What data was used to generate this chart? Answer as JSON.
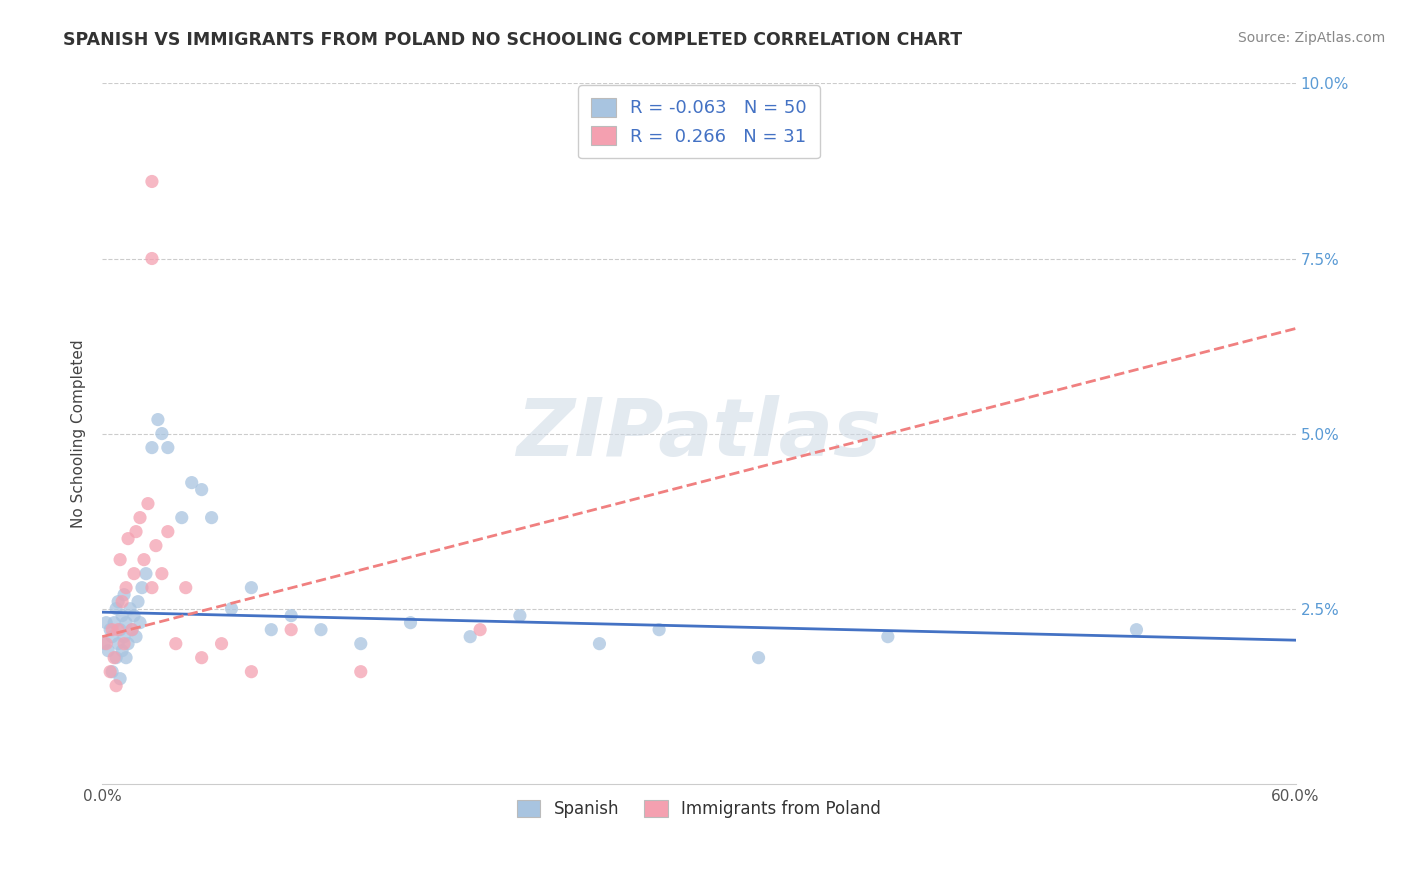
{
  "title": "SPANISH VS IMMIGRANTS FROM POLAND NO SCHOOLING COMPLETED CORRELATION CHART",
  "source": "Source: ZipAtlas.com",
  "ylabel": "No Schooling Completed",
  "xlim": [
    0.0,
    0.6
  ],
  "ylim": [
    0.0,
    0.1
  ],
  "xticks": [
    0.0,
    0.1,
    0.2,
    0.3,
    0.4,
    0.5,
    0.6
  ],
  "yticks": [
    0.0,
    0.025,
    0.05,
    0.075,
    0.1
  ],
  "spanish_R": -0.063,
  "spanish_N": 50,
  "poland_R": 0.266,
  "poland_N": 31,
  "spanish_color": "#a8c4e0",
  "poland_color": "#f4a0b0",
  "trend_color_blue": "#4472c4",
  "trend_color_pink": "#f08080",
  "legend_label_spanish": "Spanish",
  "legend_label_poland": "Immigrants from Poland",
  "spanish_x": [
    0.001,
    0.002,
    0.003,
    0.004,
    0.005,
    0.005,
    0.006,
    0.007,
    0.007,
    0.008,
    0.008,
    0.009,
    0.009,
    0.01,
    0.01,
    0.011,
    0.011,
    0.012,
    0.012,
    0.013,
    0.014,
    0.015,
    0.016,
    0.017,
    0.018,
    0.019,
    0.02,
    0.022,
    0.025,
    0.028,
    0.03,
    0.033,
    0.04,
    0.045,
    0.05,
    0.055,
    0.065,
    0.075,
    0.085,
    0.095,
    0.11,
    0.13,
    0.155,
    0.185,
    0.21,
    0.25,
    0.28,
    0.33,
    0.395,
    0.52
  ],
  "spanish_y": [
    0.02,
    0.023,
    0.019,
    0.022,
    0.016,
    0.021,
    0.023,
    0.018,
    0.025,
    0.02,
    0.026,
    0.015,
    0.022,
    0.019,
    0.024,
    0.021,
    0.027,
    0.018,
    0.023,
    0.02,
    0.025,
    0.022,
    0.024,
    0.021,
    0.026,
    0.023,
    0.028,
    0.03,
    0.048,
    0.052,
    0.05,
    0.048,
    0.038,
    0.043,
    0.042,
    0.038,
    0.025,
    0.028,
    0.022,
    0.024,
    0.022,
    0.02,
    0.023,
    0.021,
    0.024,
    0.02,
    0.022,
    0.018,
    0.021,
    0.022
  ],
  "poland_x": [
    0.002,
    0.004,
    0.005,
    0.006,
    0.007,
    0.008,
    0.009,
    0.01,
    0.011,
    0.012,
    0.013,
    0.015,
    0.016,
    0.017,
    0.019,
    0.021,
    0.023,
    0.025,
    0.027,
    0.03,
    0.033,
    0.037,
    0.042,
    0.05,
    0.06,
    0.075,
    0.095,
    0.13,
    0.19,
    0.025,
    0.025
  ],
  "poland_y": [
    0.02,
    0.016,
    0.022,
    0.018,
    0.014,
    0.022,
    0.032,
    0.026,
    0.02,
    0.028,
    0.035,
    0.022,
    0.03,
    0.036,
    0.038,
    0.032,
    0.04,
    0.028,
    0.034,
    0.03,
    0.036,
    0.02,
    0.028,
    0.018,
    0.02,
    0.016,
    0.022,
    0.016,
    0.022,
    0.086,
    0.075
  ],
  "spain_trend_x0": 0.0,
  "spain_trend_x1": 0.6,
  "spain_trend_y0": 0.0245,
  "spain_trend_y1": 0.0205,
  "poland_trend_x0": 0.0,
  "poland_trend_x1": 0.6,
  "poland_trend_y0": 0.021,
  "poland_trend_y1": 0.065
}
